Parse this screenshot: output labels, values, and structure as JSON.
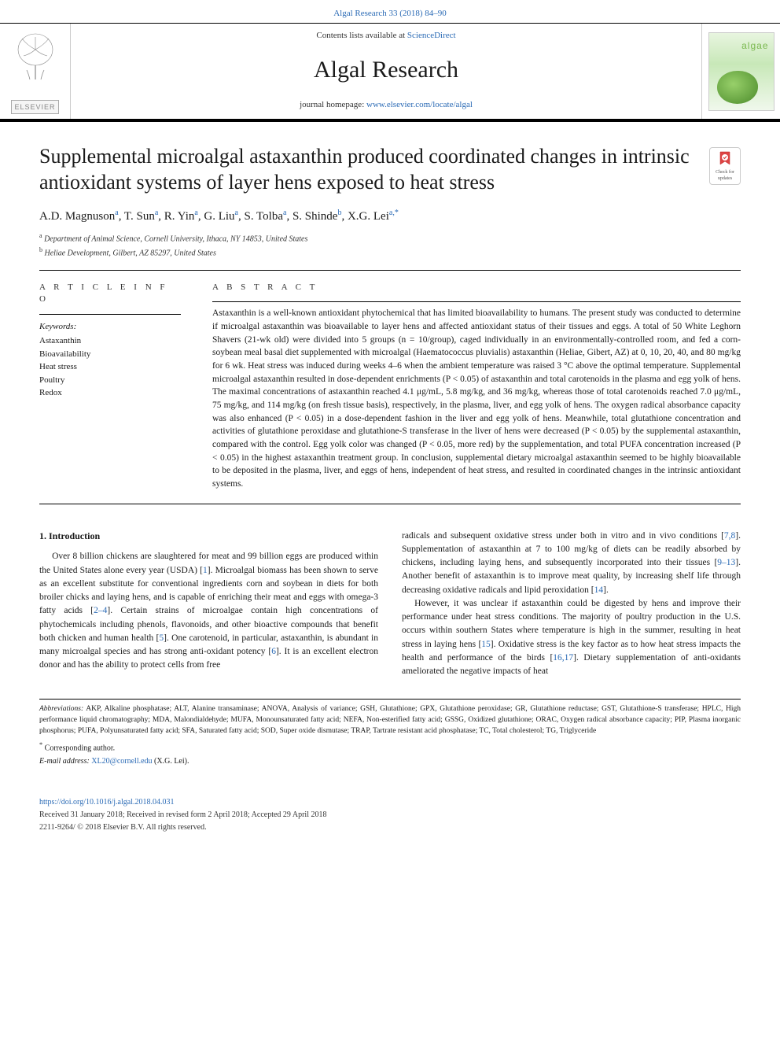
{
  "colors": {
    "link": "#2a6ab5",
    "text": "#1a1a1a",
    "background": "#ffffff",
    "rule": "#000000",
    "muted": "#888888"
  },
  "typography": {
    "body_font": "Georgia, Times New Roman, serif",
    "title_fontsize_pt": 20,
    "journal_fontsize_pt": 23,
    "abstract_fontsize_pt": 9,
    "body_fontsize_pt": 9
  },
  "header": {
    "citation": "Algal Research 33 (2018) 84–90",
    "contents_prefix": "Contents lists available at ",
    "contents_link": "ScienceDirect",
    "journal": "Algal Research",
    "homepage_prefix": "journal homepage: ",
    "homepage_url": "www.elsevier.com/locate/algal",
    "publisher": "ELSEVIER",
    "cover_word": "algae"
  },
  "article": {
    "title": "Supplemental microalgal astaxanthin produced coordinated changes in intrinsic antioxidant systems of layer hens exposed to heat stress",
    "check_badge_text": "Check for updates",
    "authors_html": "A.D. Magnuson<sup>a</sup>, T. Sun<sup>a</sup>, R. Yin<sup>a</sup>, G. Liu<sup>a</sup>, S. Tolba<sup>a</sup>, S. Shinde<sup>b</sup>, X.G. Lei<sup>a,*</sup>",
    "affiliations": [
      {
        "mark": "a",
        "text": "Department of Animal Science, Cornell University, Ithaca, NY 14853, United States"
      },
      {
        "mark": "b",
        "text": "Heliae Development, Gilbert, AZ 85297, United States"
      }
    ]
  },
  "info": {
    "heading": "A R T I C L E  I N F O",
    "keywords_label": "Keywords:",
    "keywords": [
      "Astaxanthin",
      "Bioavailability",
      "Heat stress",
      "Poultry",
      "Redox"
    ]
  },
  "abstract": {
    "heading": "A B S T R A C T",
    "text": "Astaxanthin is a well-known antioxidant phytochemical that has limited bioavailability to humans. The present study was conducted to determine if microalgal astaxanthin was bioavailable to layer hens and affected antioxidant status of their tissues and eggs. A total of 50 White Leghorn Shavers (21-wk old) were divided into 5 groups (n = 10/group), caged individually in an environmentally-controlled room, and fed a corn-soybean meal basal diet supplemented with microalgal (Haematococcus pluvialis) astaxanthin (Heliae, Gibert, AZ) at 0, 10, 20, 40, and 80 mg/kg for 6 wk. Heat stress was induced during weeks 4–6 when the ambient temperature was raised 3 °C above the optimal temperature. Supplemental microalgal astaxanthin resulted in dose-dependent enrichments (P < 0.05) of astaxanthin and total carotenoids in the plasma and egg yolk of hens. The maximal concentrations of astaxanthin reached 4.1 μg/mL, 5.8 mg/kg, and 36 mg/kg, whereas those of total carotenoids reached 7.0 μg/mL, 75 mg/kg, and 114 mg/kg (on fresh tissue basis), respectively, in the plasma, liver, and egg yolk of hens. The oxygen radical absorbance capacity was also enhanced (P < 0.05) in a dose-dependent fashion in the liver and egg yolk of hens. Meanwhile, total glutathione concentration and activities of glutathione peroxidase and glutathione-S transferase in the liver of hens were decreased (P < 0.05) by the supplemental astaxanthin, compared with the control. Egg yolk color was changed (P < 0.05, more red) by the supplementation, and total PUFA concentration increased (P < 0.05) in the highest astaxanthin treatment group. In conclusion, supplemental dietary microalgal astaxanthin seemed to be highly bioavailable to be deposited in the plasma, liver, and eggs of hens, independent of heat stress, and resulted in coordinated changes in the intrinsic antioxidant systems."
  },
  "body": {
    "section_heading": "1. Introduction",
    "left_paragraph": "Over 8 billion chickens are slaughtered for meat and 99 billion eggs are produced within the United States alone every year (USDA) [1]. Microalgal biomass has been shown to serve as an excellent substitute for conventional ingredients corn and soybean in diets for both broiler chicks and laying hens, and is capable of enriching their meat and eggs with omega-3 fatty acids [2–4]. Certain strains of microalgae contain high concentrations of phytochemicals including phenols, flavonoids, and other bioactive compounds that benefit both chicken and human health [5]. One carotenoid, in particular, astaxanthin, is abundant in many microalgal species and has strong anti-oxidant potency [6]. It is an excellent electron donor and has the ability to protect cells from free",
    "right_paragraph_1": "radicals and subsequent oxidative stress under both in vitro and in vivo conditions [7,8]. Supplementation of astaxanthin at 7 to 100 mg/kg of diets can be readily absorbed by chickens, including laying hens, and subsequently incorporated into their tissues [9–13]. Another benefit of astaxanthin is to improve meat quality, by increasing shelf life through decreasing oxidative radicals and lipid peroxidation [14].",
    "right_paragraph_2": "However, it was unclear if astaxanthin could be digested by hens and improve their performance under heat stress conditions. The majority of poultry production in the U.S. occurs within southern States where temperature is high in the summer, resulting in heat stress in laying hens [15]. Oxidative stress is the key factor as to how heat stress impacts the health and performance of the birds [16,17]. Dietary supplementation of anti-oxidants ameliorated the negative impacts of heat",
    "refs_left": [
      "1",
      "2–4",
      "5",
      "6"
    ],
    "refs_right": [
      "7,8",
      "9–13",
      "14",
      "15",
      "16,17"
    ]
  },
  "footnotes": {
    "abbrev_label": "Abbreviations:",
    "abbrev_text": " AKP, Alkaline phosphatase; ALT, Alanine transaminase; ANOVA, Analysis of variance; GSH, Glutathione; GPX, Glutathione peroxidase; GR, Glutathione reductase; GST, Glutathione-S transferase; HPLC, High performance liquid chromatography; MDA, Malondialdehyde; MUFA, Monounsaturated fatty acid; NEFA, Non-esterified fatty acid; GSSG, Oxidized glutathione; ORAC, Oxygen radical absorbance capacity; PIP, Plasma inorganic phosphorus; PUFA, Polyunsaturated fatty acid; SFA, Saturated fatty acid; SOD, Super oxide dismutase; TRAP, Tartrate resistant acid phosphatase; TC, Total cholesterol; TG, Triglyceride",
    "corresponding_mark": "*",
    "corresponding_text": " Corresponding author.",
    "email_label": "E-mail address:",
    "email": "XL20@cornell.edu",
    "email_person": " (X.G. Lei)."
  },
  "footer": {
    "doi": "https://doi.org/10.1016/j.algal.2018.04.031",
    "received": "Received 31 January 2018; Received in revised form 2 April 2018; Accepted 29 April 2018",
    "copyright": "2211-9264/ © 2018 Elsevier B.V. All rights reserved."
  }
}
